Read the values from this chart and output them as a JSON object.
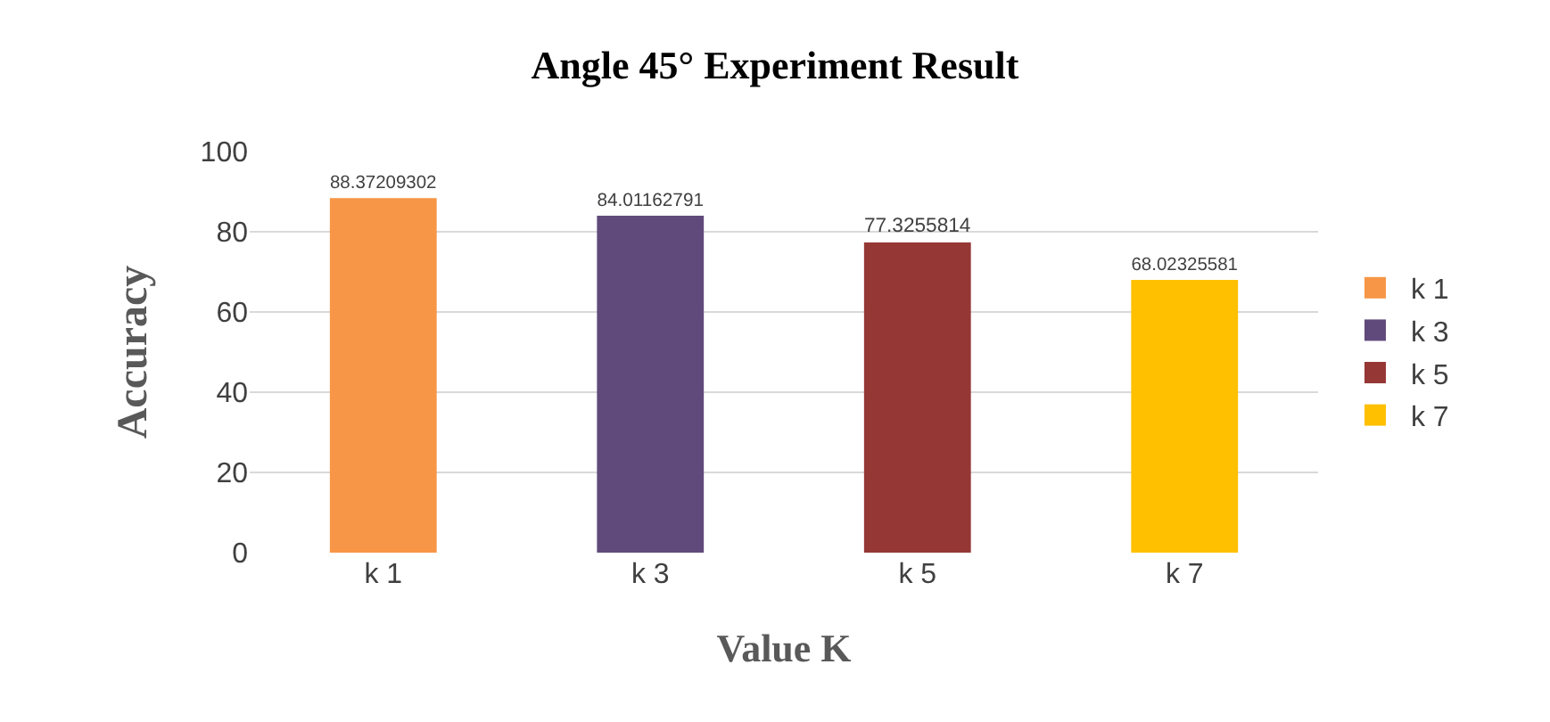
{
  "chart_data": {
    "type": "bar",
    "title": "Angle 45° Experiment Result",
    "xlabel": "Value K",
    "ylabel": "Accuracy",
    "categories": [
      "k 1",
      "k 3",
      "k 5",
      "k 7"
    ],
    "series": [
      {
        "name": "k 1",
        "color": "#f79646",
        "values": [
          88.37209302,
          null,
          null,
          null
        ]
      },
      {
        "name": "k 3",
        "color": "#604a7b",
        "values": [
          null,
          84.01162791,
          null,
          null
        ]
      },
      {
        "name": "k 5",
        "color": "#953735",
        "values": [
          null,
          null,
          77.3255814,
          null
        ]
      },
      {
        "name": "k 7",
        "color": "#ffc000",
        "values": [
          null,
          null,
          null,
          68.02325581
        ]
      }
    ],
    "ylim": [
      0,
      100
    ],
    "yticks": [
      0,
      20,
      40,
      60,
      80,
      100
    ],
    "grid": "y",
    "legend": "right",
    "data_labels": true
  }
}
